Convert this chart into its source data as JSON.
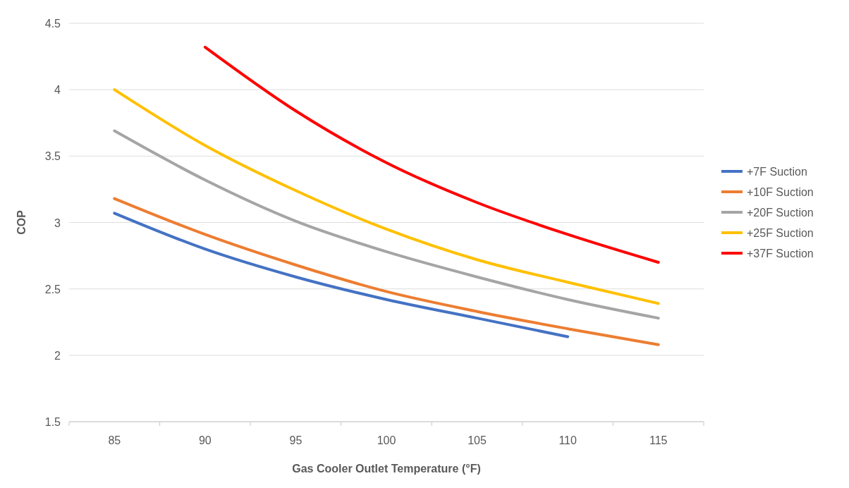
{
  "chart_data": {
    "type": "line",
    "xlabel": "Gas Cooler Outlet Temperature (°F)",
    "ylabel": "COP",
    "categories": [
      "85",
      "90",
      "95",
      "100",
      "105",
      "110",
      "115"
    ],
    "ylim": [
      1.5,
      4.5
    ],
    "yticks": [
      1.5,
      2,
      2.5,
      3,
      3.5,
      4,
      4.5
    ],
    "grid": "y",
    "legend": "right",
    "marker": "none",
    "line_style": "solid",
    "series": [
      {
        "name": "+7F Suction",
        "color": "#4472c4",
        "values": [
          3.07,
          2.8,
          2.59,
          2.42,
          2.28,
          2.14,
          null
        ]
      },
      {
        "name": "+10F Suction",
        "color": "#ed7d31",
        "values": [
          3.18,
          2.91,
          2.68,
          2.48,
          2.33,
          2.2,
          2.08
        ]
      },
      {
        "name": "+20F Suction",
        "color": "#a5a5a5",
        "values": [
          3.69,
          3.32,
          3.01,
          2.78,
          2.59,
          2.42,
          2.28
        ]
      },
      {
        "name": "+25F Suction",
        "color": "#ffc000",
        "values": [
          4.0,
          3.58,
          3.24,
          2.95,
          2.72,
          2.55,
          2.39
        ]
      },
      {
        "name": "+37F Suction",
        "color": "#ff0000",
        "values": [
          null,
          4.32,
          3.84,
          3.45,
          3.15,
          2.91,
          2.7
        ]
      }
    ]
  }
}
